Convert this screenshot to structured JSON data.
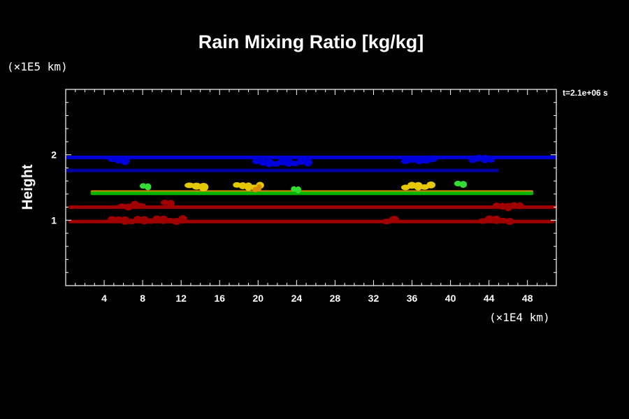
{
  "chart_data": {
    "type": "heatmap",
    "title": "Rain Mixing Ratio [kg/kg]",
    "xlabel": "",
    "ylabel": "Height",
    "x_unit": "(×1E4 km)",
    "y_unit": "(×1E5 km)",
    "time_label": "t=2.1e+06 s",
    "xlim": [
      0,
      51
    ],
    "ylim": [
      0,
      3
    ],
    "x_ticks": [
      4,
      8,
      12,
      16,
      20,
      24,
      28,
      32,
      36,
      40,
      44,
      48
    ],
    "y_ticks": [
      1,
      2
    ],
    "colors": {
      "dark_red": "#a00000",
      "green": "#00b400",
      "yellow": "#e6c800",
      "orange": "#dc8c00",
      "light_green": "#32dc32",
      "dark_blue": "#0000a0",
      "blue": "#0000dc"
    },
    "layers": [
      {
        "color": "dark_red",
        "x": [
          0.3,
          50.8
        ],
        "y": 0.98
      },
      {
        "color": "dark_red",
        "x": [
          0.3,
          51
        ],
        "y": 1.2
      },
      {
        "color": "orange",
        "x": [
          2.6,
          48.6
        ],
        "y": 1.43
      },
      {
        "color": "green",
        "x": [
          2.6,
          48.6
        ],
        "y": 1.41
      },
      {
        "color": "blue",
        "x": [
          0,
          51
        ],
        "y": 1.96
      },
      {
        "color": "dark_blue",
        "x": [
          0,
          45
        ],
        "y": 1.76
      }
    ],
    "cells": [
      {
        "color": "dark_red",
        "x": [
          4.5,
          12.5
        ],
        "y": 1.0
      },
      {
        "color": "dark_red",
        "x": [
          33,
          34.5
        ],
        "y": 1.0
      },
      {
        "color": "dark_red",
        "x": [
          43,
          46.5
        ],
        "y": 1.0
      },
      {
        "color": "dark_red",
        "x": [
          5.5,
          8.2
        ],
        "y": 1.22
      },
      {
        "color": "dark_red",
        "x": [
          10,
          11.2
        ],
        "y": 1.27
      },
      {
        "color": "dark_red",
        "x": [
          44.5,
          47.5
        ],
        "y": 1.22
      },
      {
        "color": "yellow",
        "x": [
          12.5,
          14.7
        ],
        "y": 1.52
      },
      {
        "color": "yellow",
        "x": [
          17.5,
          20.5
        ],
        "y": 1.52
      },
      {
        "color": "yellow",
        "x": [
          35,
          38.3
        ],
        "y": 1.52
      },
      {
        "color": "orange",
        "x": [
          19.5,
          20.3
        ],
        "y": 1.48
      },
      {
        "color": "light_green",
        "x": [
          7.8,
          8.8
        ],
        "y": 1.53
      },
      {
        "color": "light_green",
        "x": [
          40.5,
          41.6
        ],
        "y": 1.56
      },
      {
        "color": "light_green",
        "x": [
          23.5,
          24.4
        ],
        "y": 1.47
      },
      {
        "color": "blue",
        "x": [
          4.5,
          6.5
        ],
        "y": 1.92
      },
      {
        "color": "blue",
        "x": [
          19.5,
          25.5
        ],
        "y": 1.88
      },
      {
        "color": "blue",
        "x": [
          35,
          38.5
        ],
        "y": 1.92
      },
      {
        "color": "blue",
        "x": [
          42,
          44.5
        ],
        "y": 1.93
      }
    ]
  }
}
